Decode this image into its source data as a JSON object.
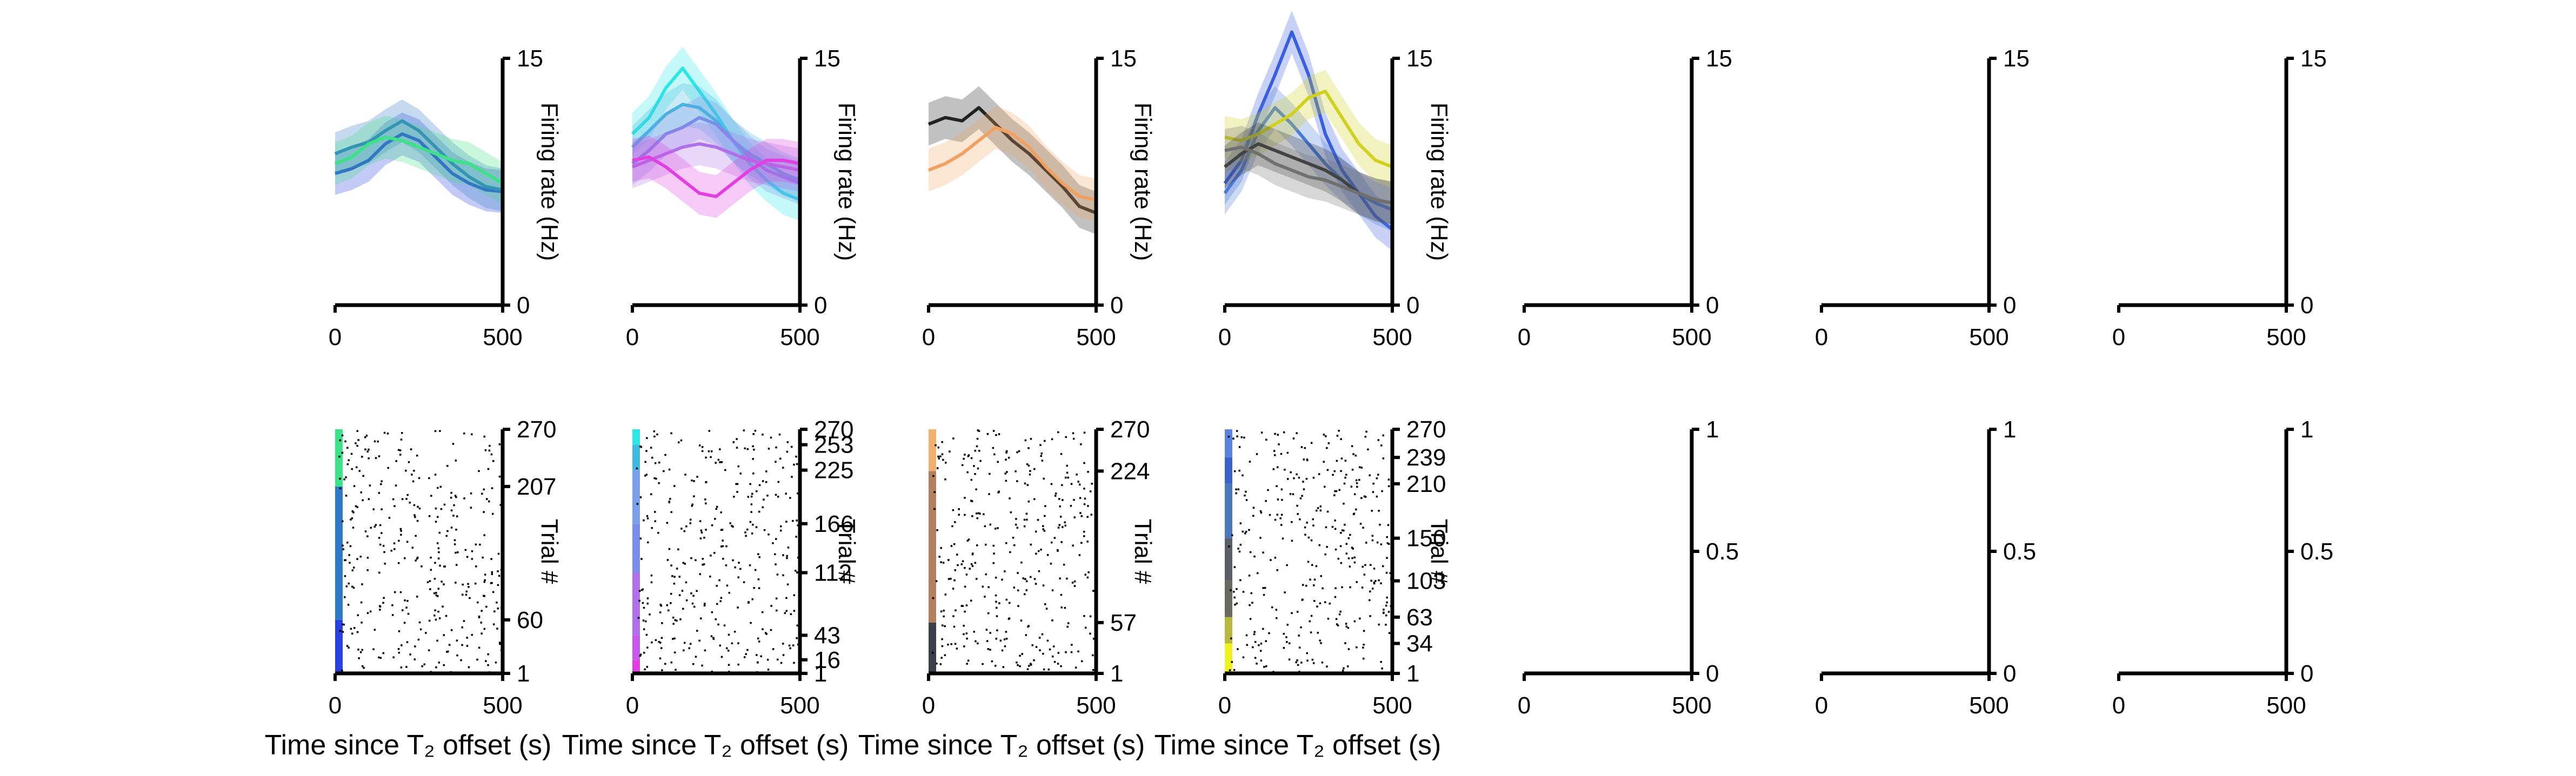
{
  "figure": {
    "background": "#ffffff",
    "axis_color": "#000000"
  },
  "chart_data": [
    {
      "panel": "rate-1",
      "type": "line",
      "x": [
        0,
        50,
        100,
        150,
        200,
        250,
        300,
        350,
        400,
        450,
        500
      ],
      "xlim": [
        0,
        500
      ],
      "ylim": [
        0,
        15
      ],
      "xticks": [
        "0",
        "500"
      ],
      "yticks": [
        "0",
        "15"
      ],
      "ylabel": "Firing rate (Hz)",
      "series": [
        {
          "color": "#2a3fe0",
          "values": [
            8.0,
            8.3,
            8.8,
            9.8,
            10.4,
            10.0,
            9.0,
            8.0,
            7.4,
            7.0,
            6.9
          ]
        },
        {
          "color": "#2f79c4",
          "values": [
            9.2,
            9.6,
            9.9,
            10.6,
            11.2,
            10.6,
            9.6,
            8.6,
            7.8,
            7.2,
            7.0
          ]
        },
        {
          "color": "#3fe08a",
          "values": [
            8.6,
            9.0,
            9.8,
            10.2,
            10.0,
            9.6,
            9.2,
            8.8,
            8.6,
            8.0,
            7.4
          ]
        }
      ]
    },
    {
      "panel": "rate-2",
      "type": "line",
      "x": [
        0,
        50,
        100,
        150,
        200,
        250,
        300,
        350,
        400,
        450,
        500
      ],
      "xlim": [
        0,
        500
      ],
      "ylim": [
        0,
        15
      ],
      "xticks": [
        "0",
        "500"
      ],
      "yticks": [
        "0",
        "15"
      ],
      "ylabel": "Firing rate (Hz)",
      "series": [
        {
          "color": "#2ee6e6",
          "values": [
            10.4,
            11.4,
            13.2,
            14.4,
            13.0,
            11.6,
            10.0,
            8.6,
            7.6,
            6.8,
            6.4
          ]
        },
        {
          "color": "#40b8e0",
          "values": [
            9.6,
            10.6,
            11.6,
            12.2,
            12.0,
            11.2,
            10.0,
            9.2,
            8.6,
            8.0,
            7.6
          ]
        },
        {
          "color": "#7a8ee8",
          "values": [
            8.6,
            9.4,
            10.4,
            10.8,
            11.4,
            11.0,
            10.0,
            9.0,
            8.2,
            7.8,
            7.4
          ]
        },
        {
          "color": "#b070e8",
          "values": [
            8.4,
            8.8,
            9.2,
            9.6,
            9.8,
            9.6,
            9.2,
            8.8,
            8.6,
            8.4,
            8.2
          ]
        },
        {
          "color": "#e040e0",
          "values": [
            8.8,
            9.0,
            8.4,
            7.6,
            6.8,
            6.6,
            7.4,
            8.2,
            8.8,
            8.8,
            8.6
          ]
        }
      ]
    },
    {
      "panel": "rate-3",
      "type": "line",
      "x": [
        0,
        50,
        100,
        150,
        200,
        250,
        300,
        350,
        400,
        450,
        500
      ],
      "xlim": [
        0,
        500
      ],
      "ylim": [
        0,
        15
      ],
      "xticks": [
        "0",
        "500"
      ],
      "yticks": [
        "0",
        "15"
      ],
      "ylabel": "Firing rate (Hz)",
      "series": [
        {
          "color": "#222222",
          "values": [
            11.0,
            11.4,
            11.2,
            12.0,
            11.0,
            10.0,
            9.2,
            8.2,
            7.2,
            6.0,
            5.6
          ]
        },
        {
          "color": "#f0a060",
          "values": [
            8.2,
            8.6,
            9.2,
            10.0,
            10.8,
            10.4,
            9.6,
            8.4,
            7.4,
            6.6,
            6.4
          ]
        }
      ]
    },
    {
      "panel": "rate-4",
      "type": "line",
      "x": [
        0,
        50,
        100,
        150,
        200,
        250,
        300,
        350,
        400,
        450,
        500
      ],
      "xlim": [
        0,
        500
      ],
      "ylim": [
        0,
        15
      ],
      "xticks": [
        "0",
        "500"
      ],
      "yticks": [
        "0",
        "15"
      ],
      "ylabel": "Firing rate (Hz)",
      "series": [
        {
          "color": "#3a5ee0",
          "values": [
            7.4,
            8.8,
            11.6,
            14.0,
            16.6,
            14.0,
            10.4,
            8.2,
            6.8,
            5.4,
            4.6
          ]
        },
        {
          "color": "#4a7ad8",
          "values": [
            6.8,
            8.2,
            10.6,
            12.0,
            11.0,
            9.8,
            8.6,
            7.6,
            6.8,
            6.2,
            5.8
          ]
        },
        {
          "color": "#d0d020",
          "values": [
            10.2,
            10.0,
            10.4,
            11.0,
            11.6,
            12.6,
            13.0,
            11.4,
            9.8,
            8.8,
            8.4
          ]
        },
        {
          "color": "#333333",
          "values": [
            8.4,
            9.2,
            9.8,
            9.4,
            9.0,
            8.6,
            8.2,
            7.6,
            6.8,
            6.4,
            6.2
          ]
        },
        {
          "color": "#707070",
          "values": [
            9.4,
            9.6,
            9.2,
            8.6,
            8.2,
            7.8,
            7.6,
            7.2,
            6.8,
            6.4,
            6.2
          ]
        }
      ]
    },
    {
      "panel": "rate-5",
      "type": "line",
      "empty": true,
      "xlim": [
        0,
        500
      ],
      "ylim": [
        0,
        15
      ],
      "xticks": [
        "0",
        "500"
      ],
      "yticks": [
        "0",
        "15"
      ],
      "series": []
    },
    {
      "panel": "rate-6",
      "type": "line",
      "empty": true,
      "xlim": [
        0,
        500
      ],
      "ylim": [
        0,
        15
      ],
      "xticks": [
        "0",
        "500"
      ],
      "yticks": [
        "0",
        "15"
      ],
      "series": []
    },
    {
      "panel": "rate-7",
      "type": "line",
      "empty": true,
      "xlim": [
        0,
        500
      ],
      "ylim": [
        0,
        15
      ],
      "xticks": [
        "0",
        "500"
      ],
      "yticks": [
        "0",
        "15"
      ],
      "series": []
    },
    {
      "panel": "raster-1",
      "type": "scatter",
      "xlim": [
        0,
        500
      ],
      "ylim": [
        1,
        270
      ],
      "xticks": [
        "0",
        "500"
      ],
      "yticks": [
        "1",
        "60",
        "207",
        "270"
      ],
      "xlabel": "Time since T₂ offset (s)",
      "ylabel": "Trial #",
      "spike_density": 0.045,
      "condition_blocks": [
        {
          "from": 1,
          "to": 60,
          "color": "#2a3fe0"
        },
        {
          "from": 60,
          "to": 207,
          "color": "#2f79c4"
        },
        {
          "from": 207,
          "to": 270,
          "color": "#3fe08a"
        }
      ]
    },
    {
      "panel": "raster-2",
      "type": "scatter",
      "xlim": [
        0,
        500
      ],
      "ylim": [
        1,
        270
      ],
      "xticks": [
        "0",
        "500"
      ],
      "yticks": [
        "1",
        "16",
        "43",
        "112",
        "166",
        "225",
        "253",
        "270"
      ],
      "xlabel": "Time since T₂ offset (s)",
      "ylabel": "Trial #",
      "spike_density": 0.045,
      "condition_blocks": [
        {
          "from": 1,
          "to": 16,
          "color": "#e040e0"
        },
        {
          "from": 16,
          "to": 43,
          "color": "#c85ae8"
        },
        {
          "from": 43,
          "to": 112,
          "color": "#b070e8"
        },
        {
          "from": 112,
          "to": 166,
          "color": "#7a8ee8"
        },
        {
          "from": 166,
          "to": 225,
          "color": "#7aa0e8"
        },
        {
          "from": 225,
          "to": 253,
          "color": "#40b8e0"
        },
        {
          "from": 253,
          "to": 270,
          "color": "#2ee6e6"
        }
      ]
    },
    {
      "panel": "raster-3",
      "type": "scatter",
      "xlim": [
        0,
        500
      ],
      "ylim": [
        1,
        270
      ],
      "xticks": [
        "0",
        "500"
      ],
      "yticks": [
        "1",
        "57",
        "224",
        "270"
      ],
      "xlabel": "Time since T₂ offset (s)",
      "ylabel": "Trial #",
      "spike_density": 0.045,
      "condition_blocks": [
        {
          "from": 1,
          "to": 57,
          "color": "#3a3f48"
        },
        {
          "from": 57,
          "to": 224,
          "color": "#b08060"
        },
        {
          "from": 224,
          "to": 270,
          "color": "#f0b070"
        }
      ]
    },
    {
      "panel": "raster-4",
      "type": "scatter",
      "xlim": [
        0,
        500
      ],
      "ylim": [
        1,
        270
      ],
      "xticks": [
        "0",
        "500"
      ],
      "yticks": [
        "1",
        "34",
        "63",
        "103",
        "150",
        "210",
        "239",
        "270"
      ],
      "xlabel": "Time since T₂ offset (s)",
      "ylabel": "Trial #",
      "spike_density": 0.045,
      "condition_blocks": [
        {
          "from": 1,
          "to": 34,
          "color": "#f0f020"
        },
        {
          "from": 34,
          "to": 63,
          "color": "#b8b840"
        },
        {
          "from": 63,
          "to": 103,
          "color": "#6a6a60"
        },
        {
          "from": 103,
          "to": 150,
          "color": "#5a5e68"
        },
        {
          "from": 150,
          "to": 210,
          "color": "#4a78b8"
        },
        {
          "from": 210,
          "to": 239,
          "color": "#3a62c8"
        },
        {
          "from": 239,
          "to": 270,
          "color": "#5a82e0"
        }
      ]
    },
    {
      "panel": "raster-5",
      "type": "scatter",
      "empty": true,
      "xlim": [
        0,
        500
      ],
      "ylim": [
        0,
        1
      ],
      "xticks": [
        "0",
        "500"
      ],
      "yticks": [
        "0",
        "0.5",
        "1"
      ]
    },
    {
      "panel": "raster-6",
      "type": "scatter",
      "empty": true,
      "xlim": [
        0,
        500
      ],
      "ylim": [
        0,
        1
      ],
      "xticks": [
        "0",
        "500"
      ],
      "yticks": [
        "0",
        "0.5",
        "1"
      ]
    },
    {
      "panel": "raster-7",
      "type": "scatter",
      "empty": true,
      "xlim": [
        0,
        500
      ],
      "ylim": [
        0,
        1
      ],
      "xticks": [
        "0",
        "500"
      ],
      "yticks": [
        "0",
        "0.5",
        "1"
      ]
    }
  ]
}
